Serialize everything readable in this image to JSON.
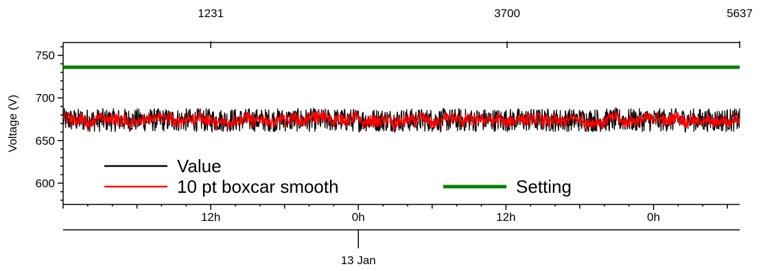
{
  "chart_data": {
    "type": "line",
    "ylabel": "Voltage (V)",
    "ylim": [
      575,
      765
    ],
    "y_ticks": [
      600,
      650,
      700,
      750
    ],
    "y_tick_labels": [
      "600",
      "650",
      "700",
      "750"
    ],
    "top_axis": {
      "range": [
        1,
        5637
      ],
      "ticks": [
        1231,
        3700,
        5637
      ],
      "tick_labels": [
        "1231",
        "3700",
        "5637"
      ]
    },
    "time_axis": {
      "range_hours": [
        0,
        55
      ],
      "major_ticks_hours": [
        12,
        24,
        36,
        48
      ],
      "tick_labels": [
        "12h",
        "0h",
        "12h",
        "0h"
      ]
    },
    "date_axis": {
      "date_tick_hours": 24,
      "date_label": "13 Jan"
    },
    "legend": {
      "placement": "bottom-left",
      "entries": [
        {
          "name": "Value",
          "color": "#000000"
        },
        {
          "name": "10 pt boxcar smooth",
          "color": "#ff0000"
        },
        {
          "name": "Setting",
          "color": "#008000"
        }
      ]
    },
    "series": [
      {
        "name": "Value",
        "color": "#000000",
        "n_points": 5637,
        "min": 660,
        "max": 688,
        "mean": 673
      },
      {
        "name": "10 pt boxcar smooth",
        "color": "#ff0000",
        "n_points": 5637,
        "min": 657,
        "max": 684,
        "mean": 672
      },
      {
        "name": "Setting",
        "color": "#008000",
        "n_points": 5637,
        "constant": 736
      }
    ]
  }
}
